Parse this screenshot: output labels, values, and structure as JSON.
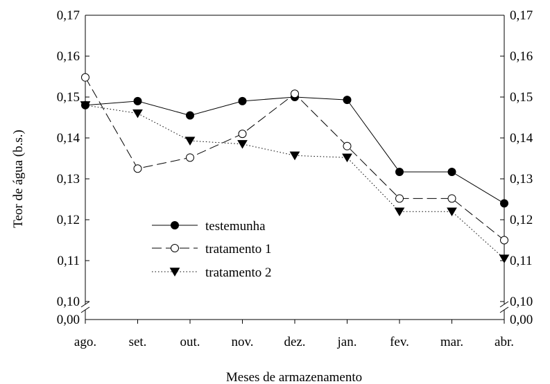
{
  "chart_data": {
    "type": "line",
    "xlabel": "Meses de armazenamento",
    "ylabel": "Teor de água (b.s.)",
    "categories": [
      "ago.",
      "set.",
      "out.",
      "nov.",
      "dez.",
      "jan.",
      "fev.",
      "mar.",
      "abr."
    ],
    "ylim": [
      0.1,
      0.17
    ],
    "y_ticks": [
      "0,10",
      "0,11",
      "0,12",
      "0,13",
      "0,14",
      "0,15",
      "0,16",
      "0,17"
    ],
    "y_axis_break": {
      "lower_label": "0,00",
      "upper_value": 0.1
    },
    "secondary_y_axis": true,
    "grid": false,
    "legend_position": "lower-left",
    "series": [
      {
        "name": "testemunha",
        "line_style": "solid",
        "marker": "filled-circle",
        "values": [
          0.148,
          0.149,
          0.1455,
          0.149,
          0.15,
          0.1493,
          0.1317,
          0.1317,
          0.124
        ]
      },
      {
        "name": "tratamento 1",
        "line_style": "dashed",
        "marker": "open-circle",
        "values": [
          0.1548,
          0.1325,
          0.1352,
          0.141,
          0.1508,
          0.138,
          0.1252,
          0.1252,
          0.115
        ]
      },
      {
        "name": "tratamento 2",
        "line_style": "dotted",
        "marker": "filled-triangle-down",
        "values": [
          0.148,
          0.146,
          0.1393,
          0.1385,
          0.1357,
          0.1352,
          0.122,
          0.122,
          0.1105
        ]
      }
    ]
  }
}
